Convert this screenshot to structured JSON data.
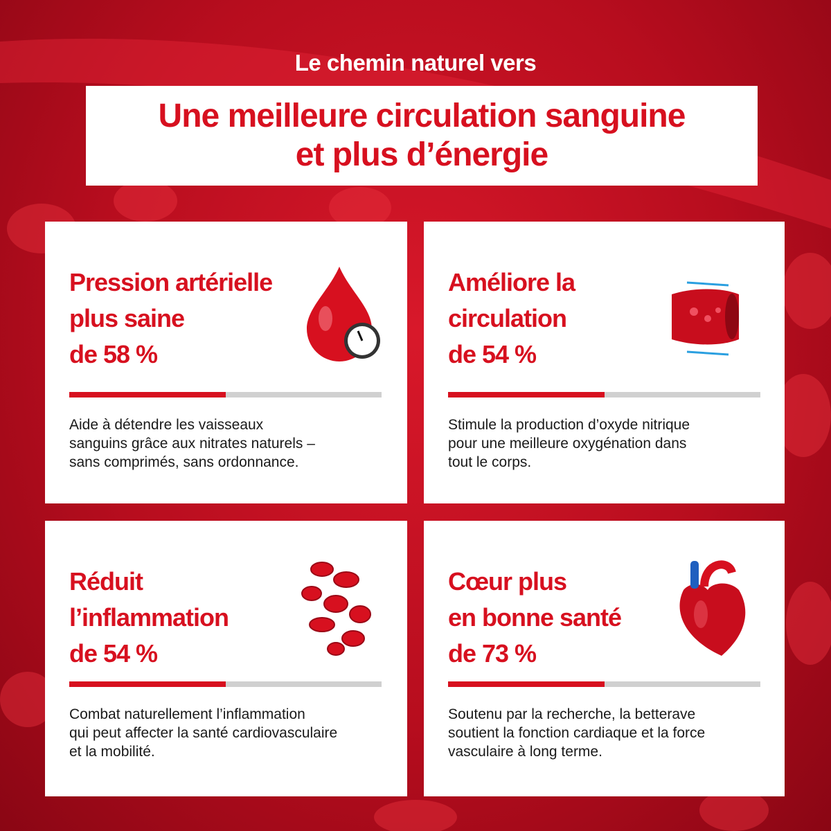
{
  "header": {
    "kicker": "Le chemin naturel vers",
    "title_lines": [
      "Une meilleure circulation sanguine",
      "et plus d’énergie"
    ]
  },
  "cards": [
    {
      "title_lines": [
        "Pression artérielle",
        "plus saine",
        "de 58 %"
      ],
      "body_lines": [
        "Aide à détendre les vaisseaux",
        "sanguins grâce aux nitrates naturels –",
        "sans comprimés, sans ordonnance."
      ]
    },
    {
      "title_lines": [
        "Améliore la",
        "circulation",
        "de 54 %"
      ],
      "body_lines": [
        "Stimule la production d’oxyde nitrique",
        "pour une meilleure oxygénation dans",
        "tout le corps."
      ]
    },
    {
      "title_lines": [
        "Réduit",
        "l’inflammation",
        "de 54 %"
      ],
      "body_lines": [
        "Combat naturellement l’inflammation",
        "qui peut affecter la santé cardiovasculaire",
        "et la mobilité."
      ]
    },
    {
      "title_lines": [
        "Cœur plus",
        "en bonne santé",
        "de 73 %"
      ],
      "body_lines": [
        "Soutenu par la recherche, la betterave",
        "soutient la fonction cardiaque et la force",
        "vasculaire à long terme."
      ]
    }
  ]
}
